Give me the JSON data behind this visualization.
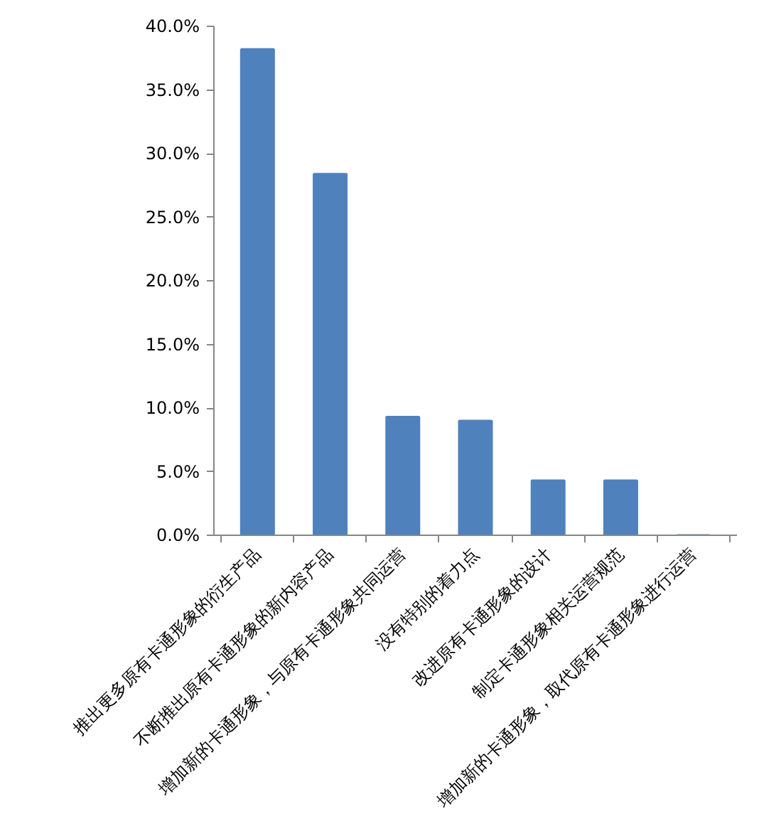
{
  "chart_data": {
    "type": "bar",
    "categories": [
      "推出更多原有卡通形象的衍生产品",
      "不断推出原有卡通形象的新内容产品",
      "增加新的卡通形象，与原有卡通形象共同运营",
      "没有特别的着力点",
      "改进原有卡通形象的设计",
      "制定卡通形象相关运营规范",
      "增加新的卡通形象，取代原有卡通形象进行运营"
    ],
    "values": [
      38.2,
      28.4,
      9.3,
      9.0,
      4.3,
      4.3,
      0
    ],
    "color": "#4f81bd",
    "ylim": [
      0,
      40
    ],
    "yticks": [
      {
        "value": 0,
        "label": "0.0%"
      },
      {
        "value": 5,
        "label": "5.0%"
      },
      {
        "value": 10,
        "label": "10.0%"
      },
      {
        "value": 15,
        "label": "15.0%"
      },
      {
        "value": 20,
        "label": "20.0%"
      },
      {
        "value": 25,
        "label": "25.0%"
      },
      {
        "value": 30,
        "label": "30.0%"
      },
      {
        "value": 35,
        "label": "35.0%"
      },
      {
        "value": 40,
        "label": "40.0%"
      }
    ],
    "grid": false
  }
}
